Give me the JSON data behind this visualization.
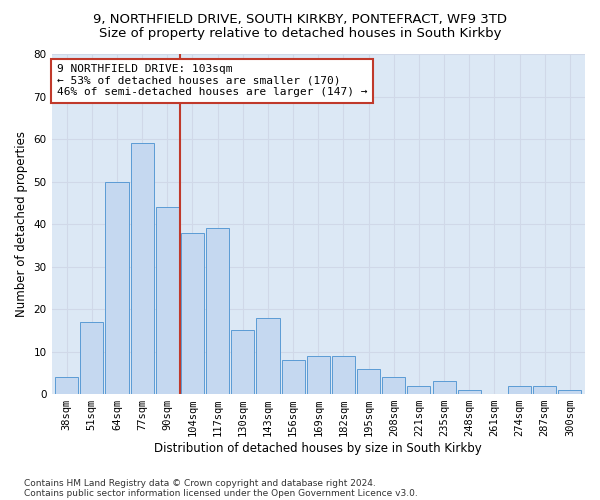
{
  "title1": "9, NORTHFIELD DRIVE, SOUTH KIRKBY, PONTEFRACT, WF9 3TD",
  "title2": "Size of property relative to detached houses in South Kirkby",
  "xlabel": "Distribution of detached houses by size in South Kirkby",
  "ylabel": "Number of detached properties",
  "categories": [
    "38sqm",
    "51sqm",
    "64sqm",
    "77sqm",
    "90sqm",
    "104sqm",
    "117sqm",
    "130sqm",
    "143sqm",
    "156sqm",
    "169sqm",
    "182sqm",
    "195sqm",
    "208sqm",
    "221sqm",
    "235sqm",
    "248sqm",
    "261sqm",
    "274sqm",
    "287sqm",
    "300sqm"
  ],
  "values": [
    4,
    17,
    50,
    59,
    44,
    38,
    39,
    15,
    18,
    8,
    9,
    9,
    6,
    4,
    2,
    3,
    1,
    0,
    2,
    2,
    1
  ],
  "bar_color": "#c5d8f0",
  "bar_edge_color": "#5b9bd5",
  "vline_x": 5,
  "vline_color": "#c0392b",
  "annotation_text": "9 NORTHFIELD DRIVE: 103sqm\n← 53% of detached houses are smaller (170)\n46% of semi-detached houses are larger (147) →",
  "annotation_box_color": "#ffffff",
  "annotation_box_edge_color": "#c0392b",
  "ylim": [
    0,
    80
  ],
  "yticks": [
    0,
    10,
    20,
    30,
    40,
    50,
    60,
    70,
    80
  ],
  "grid_color": "#d0d8e8",
  "background_color": "#dce8f5",
  "fig_background_color": "#ffffff",
  "footer1": "Contains HM Land Registry data © Crown copyright and database right 2024.",
  "footer2": "Contains public sector information licensed under the Open Government Licence v3.0.",
  "title1_fontsize": 9.5,
  "title2_fontsize": 9.5,
  "xlabel_fontsize": 8.5,
  "ylabel_fontsize": 8.5,
  "tick_fontsize": 7.5,
  "annotation_fontsize": 8,
  "footer_fontsize": 6.5
}
